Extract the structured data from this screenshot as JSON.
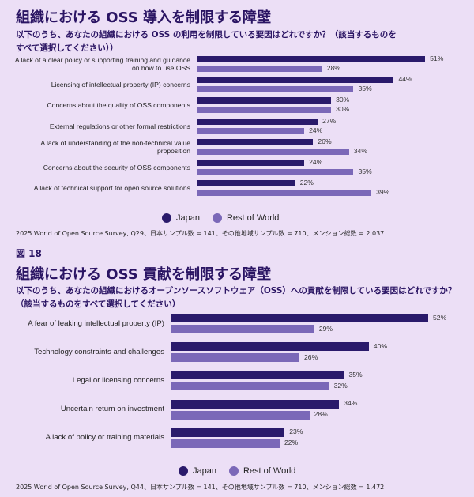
{
  "colors": {
    "japan": "#2a1a6b",
    "row": "#7b68b8"
  },
  "chart_data": [
    {
      "type": "bar",
      "orientation": "horizontal",
      "title": "組織における OSS 導入を制限する障壁",
      "subtitle": "以下のうち、あなたの組織における OSS の利用を制限している要因はどれですか？（該当するものをすべて選択してください））",
      "categories": [
        "A lack of a clear policy or supporting training and guidance on how to use OSS",
        "Licensing of intellectual property (IP) concerns",
        "Concerns about the quality of OSS components",
        "External regulations or other formal restrictions",
        "A lack of understanding of the non-technical value proposition",
        "Concerns about the security of OSS components",
        "A lack of technical support for open source solutions"
      ],
      "series": [
        {
          "name": "Japan",
          "values": [
            51,
            44,
            30,
            27,
            26,
            24,
            22
          ]
        },
        {
          "name": "Rest of World",
          "values": [
            28,
            35,
            30,
            24,
            34,
            35,
            39
          ]
        }
      ],
      "unit": "%",
      "legend": "bottom-center",
      "source": "2025 World of Open Source Survey, Q29、日本サンプル数 = 141、その他地域サンプル数 = 710、メンション総数 = 2,037"
    },
    {
      "type": "bar",
      "orientation": "horizontal",
      "figure_label": "図 18",
      "title": "組織における OSS 貢献を制限する障壁",
      "subtitle": "以下のうち、あなたの組織におけるオープンソースソフトウェア（OSS）への貢献を制限している要因はどれですか？（該当するものをすべて選択してください）",
      "categories": [
        "A fear of leaking intellectual property (IP)",
        "Technology constraints and challenges",
        "Legal or licensing concerns",
        "Uncertain return on investment",
        "A lack of policy or training materials"
      ],
      "series": [
        {
          "name": "Japan",
          "values": [
            52,
            40,
            35,
            34,
            23
          ]
        },
        {
          "name": "Rest of World",
          "values": [
            29,
            26,
            32,
            28,
            22
          ]
        }
      ],
      "unit": "%",
      "legend": "bottom-center",
      "source": "2025 World of Open Source Survey, Q44、日本サンプル数 = 141、その他地域サンプル数 = 710、メンション総数 = 1,472"
    }
  ]
}
